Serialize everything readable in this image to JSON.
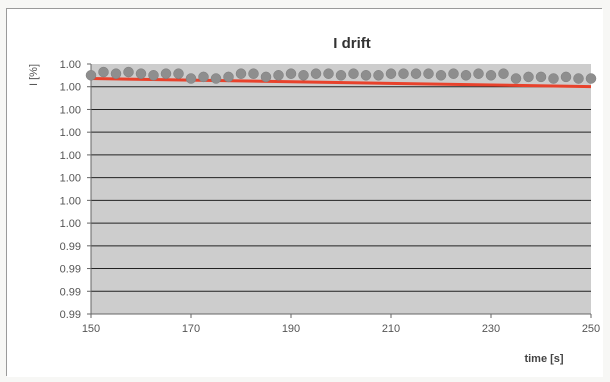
{
  "chart_data": {
    "type": "scatter",
    "title": "I drift",
    "xlabel": "time [s]",
    "ylabel": "I [%]",
    "xlim": [
      150,
      250
    ],
    "x_ticks": [
      150,
      170,
      190,
      210,
      230,
      250
    ],
    "y_tick_labels": [
      "1.00",
      "1.00",
      "1.00",
      "1.00",
      "1.00",
      "1.00",
      "1.00",
      "1.00",
      "0.99",
      "0.99",
      "0.99",
      "0.99"
    ],
    "grid": true,
    "series": [
      {
        "marker": "circle",
        "color": "#8e8e8e",
        "x": [
          150,
          152.5,
          155,
          157.5,
          160,
          162.5,
          165,
          167.5,
          170,
          172.5,
          175,
          177.5,
          180,
          182.5,
          185,
          187.5,
          190,
          192.5,
          195,
          197.5,
          200,
          202.5,
          205,
          207.5,
          210,
          212.5,
          215,
          217.5,
          220,
          222.5,
          225,
          227.5,
          230,
          232.5,
          235,
          237.5,
          240,
          242.5,
          245,
          247.5,
          250
        ],
        "y": [
          1.0048,
          1.005,
          1.0049,
          1.005,
          1.0049,
          1.0048,
          1.0049,
          1.0049,
          1.0046,
          1.0047,
          1.0046,
          1.0047,
          1.0049,
          1.0049,
          1.0047,
          1.0048,
          1.0049,
          1.0048,
          1.0049,
          1.0049,
          1.0048,
          1.0049,
          1.0048,
          1.0048,
          1.0049,
          1.0049,
          1.0049,
          1.0049,
          1.0048,
          1.0049,
          1.0048,
          1.0049,
          1.0048,
          1.0049,
          1.0046,
          1.0047,
          1.0047,
          1.0046,
          1.0047,
          1.0046,
          1.0046
        ]
      },
      {
        "type": "line",
        "color": "#e8422c",
        "x": [
          150,
          250
        ],
        "y": [
          1.0046,
          1.0041
        ]
      }
    ]
  },
  "colors": {
    "plot_background": "#cdcdcd",
    "gridline": "#222222",
    "axis": "#666666"
  }
}
